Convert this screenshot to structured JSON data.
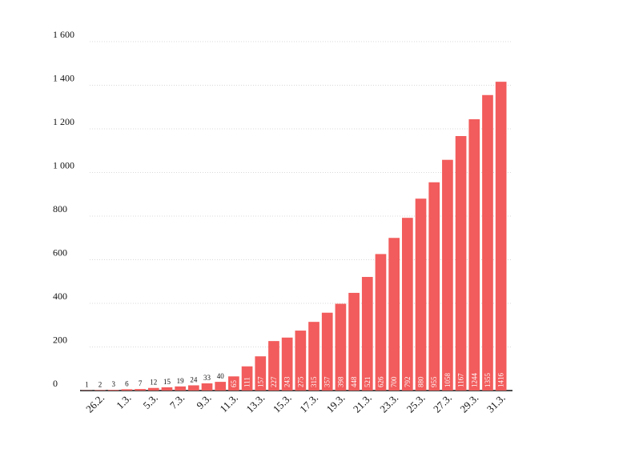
{
  "chart_data": {
    "type": "bar",
    "categories": [
      null,
      "26.2.",
      null,
      "1.3.",
      null,
      "5.3.",
      null,
      "7.3.",
      null,
      "9.3.",
      null,
      "11.3.",
      null,
      "13.3.",
      null,
      "15.3.",
      null,
      "17.3.",
      null,
      "19.3.",
      null,
      "21.3.",
      null,
      "23.3.",
      null,
      "25.3.",
      null,
      "27.3.",
      null,
      "29.3.",
      null,
      "31.3."
    ],
    "values": [
      1,
      2,
      3,
      6,
      7,
      12,
      15,
      19,
      24,
      33,
      40,
      65,
      111,
      157,
      227,
      243,
      275,
      315,
      357,
      398,
      448,
      521,
      626,
      700,
      792,
      880,
      955,
      1058,
      1167,
      1244,
      1355,
      1416
    ],
    "color": "#f25c5c",
    "ylim": [
      0,
      1600
    ],
    "yticks": [
      0,
      {
        "value": 200,
        "label": "200"
      },
      {
        "value": 400,
        "label": "400"
      },
      {
        "value": 600,
        "label": "600"
      },
      {
        "value": 800,
        "label": "800"
      },
      {
        "value": 1000,
        "label": "1 000"
      },
      {
        "value": 1200,
        "label": "1 200"
      },
      {
        "value": 1400,
        "label": "1 400"
      },
      {
        "value": 1600,
        "label": "1 600"
      }
    ],
    "grid": true
  }
}
